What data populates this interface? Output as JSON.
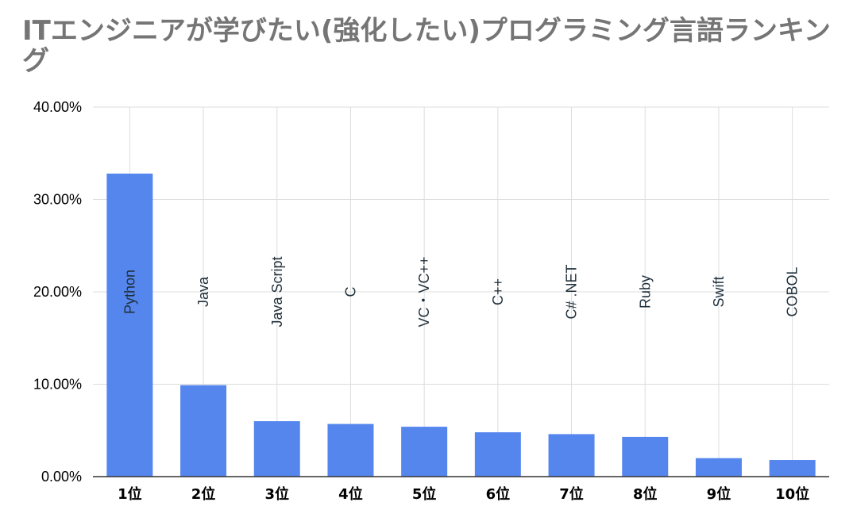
{
  "chart_data": {
    "type": "bar",
    "title": "ITエンジニアが学びたい(強化したい)プログラミング言語ランキング",
    "categories": [
      "1位",
      "2位",
      "3位",
      "4位",
      "5位",
      "6位",
      "7位",
      "8位",
      "9位",
      "10位"
    ],
    "bar_labels": [
      "Python",
      "Java",
      "Java Script",
      "C",
      "VC・VC++",
      "C++",
      "C# .NET",
      "Ruby",
      "Swift",
      "COBOL"
    ],
    "values": [
      32.8,
      9.9,
      6.0,
      5.7,
      5.4,
      4.8,
      4.6,
      4.3,
      2.0,
      1.8
    ],
    "ylim": [
      0,
      40
    ],
    "yticks": [
      0,
      10,
      20,
      30,
      40
    ],
    "ytick_labels": [
      "0.00%",
      "10.00%",
      "20.00%",
      "30.00%",
      "40.00%"
    ],
    "grid": true,
    "bar_color": "#5586ee",
    "grid_color": "#dddddd",
    "axis_color": "#333333"
  }
}
